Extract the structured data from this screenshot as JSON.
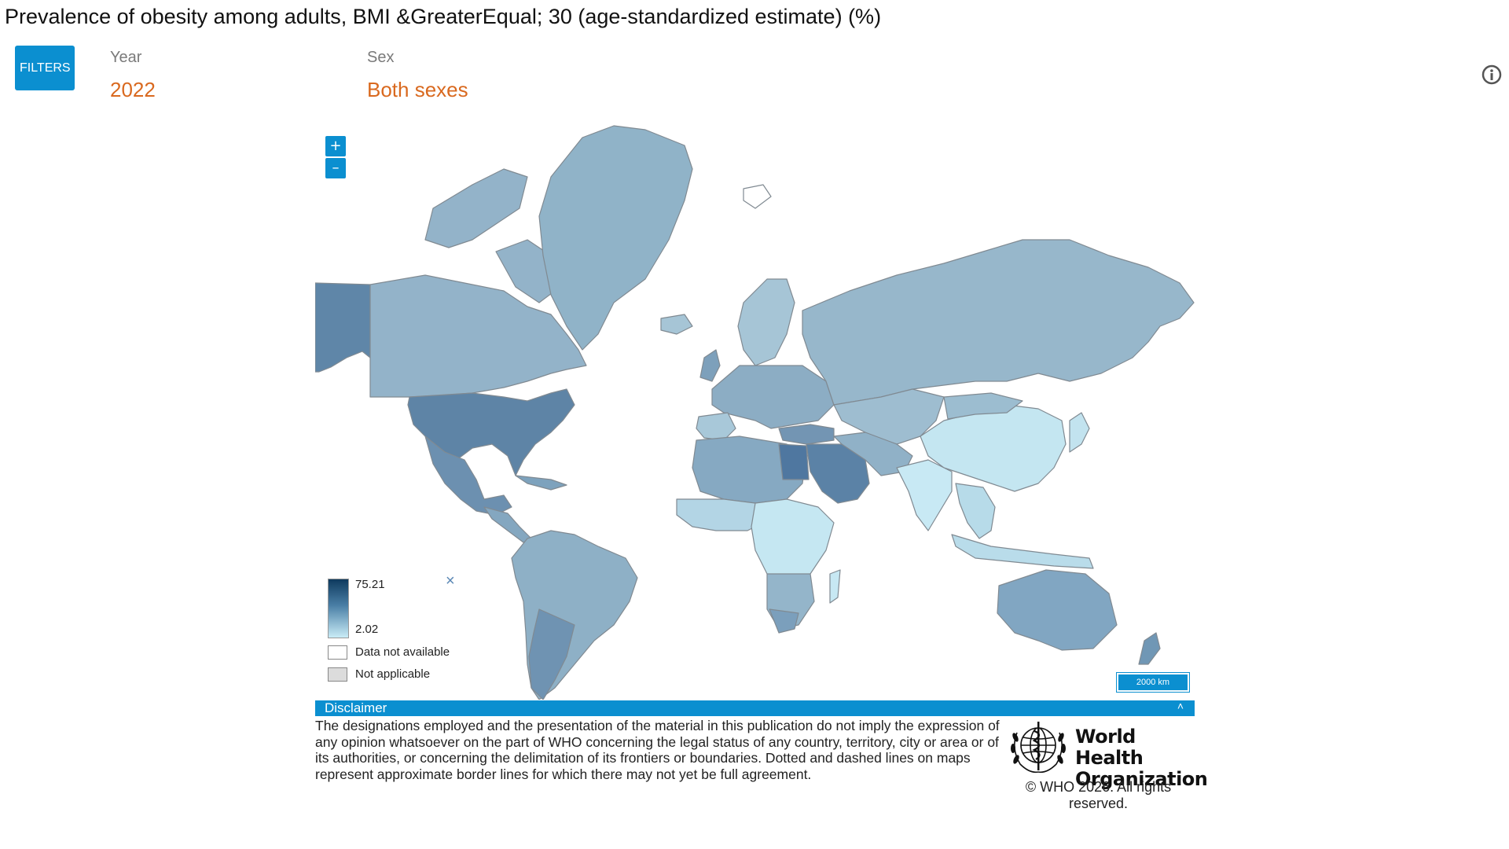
{
  "page": {
    "title": "Prevalence of obesity among adults, BMI &GreaterEqual; 30 (age-standardized estimate) (%)"
  },
  "filters": {
    "button_label": "FILTERS",
    "year": {
      "label": "Year",
      "value": "2022"
    },
    "sex": {
      "label": "Sex",
      "value": "Both sexes"
    }
  },
  "icons": {
    "info": "info-icon",
    "zoom_in": "+",
    "zoom_out": "–",
    "legend_close": "×",
    "disclaimer_toggle": "˄"
  },
  "map": {
    "legend": {
      "max": "75.21",
      "min": "2.02",
      "data_not_available": "Data not available",
      "not_applicable": "Not applicable"
    },
    "scale_label": "2000 km",
    "colors": {
      "high": "#0e3a5e",
      "mid": "#4a7fa6",
      "low": "#c9ecf6",
      "not_applicable": "#dcdcdc",
      "accent": "#0b8fd0"
    }
  },
  "disclaimer": {
    "title": "Disclaimer",
    "text": "The designations employed and the presentation of the material in this publication do not imply the expression of any opinion whatsoever on the part of WHO concerning the legal status of any country, territory, city or area or of its authorities, or concerning the delimitation of its frontiers or boundaries. Dotted and dashed lines on maps represent approximate border lines for which there may not yet be full agreement."
  },
  "footer": {
    "org_line1": "World Health",
    "org_line2": "Organization",
    "copyright": "© WHO 2026. All rights reserved."
  }
}
